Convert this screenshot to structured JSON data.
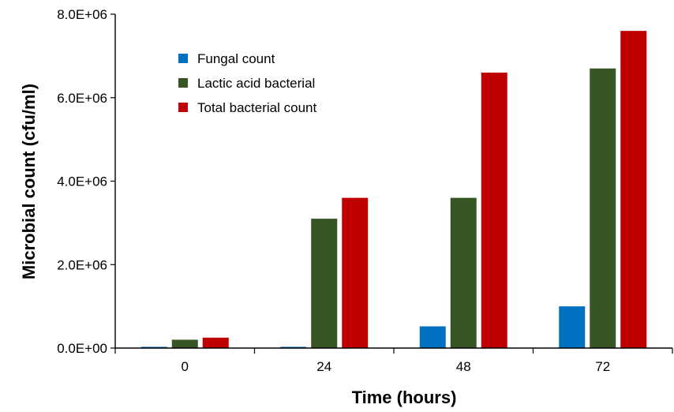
{
  "chart_data": {
    "type": "bar",
    "title": "",
    "xlabel": "Time (hours)",
    "ylabel": "Microbial count  (cfu/ml)",
    "categories": [
      "0",
      "24",
      "48",
      "72"
    ],
    "ylim": [
      0,
      8000000
    ],
    "yticks": [
      0,
      2000000,
      4000000,
      6000000,
      8000000
    ],
    "ytick_labels": [
      "0.0E+00",
      "2.0E+06",
      "4.0E+06",
      "6.0E+06",
      "8.0E+06"
    ],
    "series": [
      {
        "name": "Fungal count",
        "color": "#0070c0",
        "values": [
          30000,
          30000,
          520000,
          1000000
        ]
      },
      {
        "name": "Lactic acid bacterial",
        "color": "#375623",
        "values": [
          200000,
          3100000,
          3600000,
          6700000
        ]
      },
      {
        "name": "Total bacterial count",
        "color": "#c00000",
        "values": [
          250000,
          3600000,
          6600000,
          7600000
        ]
      }
    ],
    "legend_position": "top-left",
    "grid": false
  }
}
